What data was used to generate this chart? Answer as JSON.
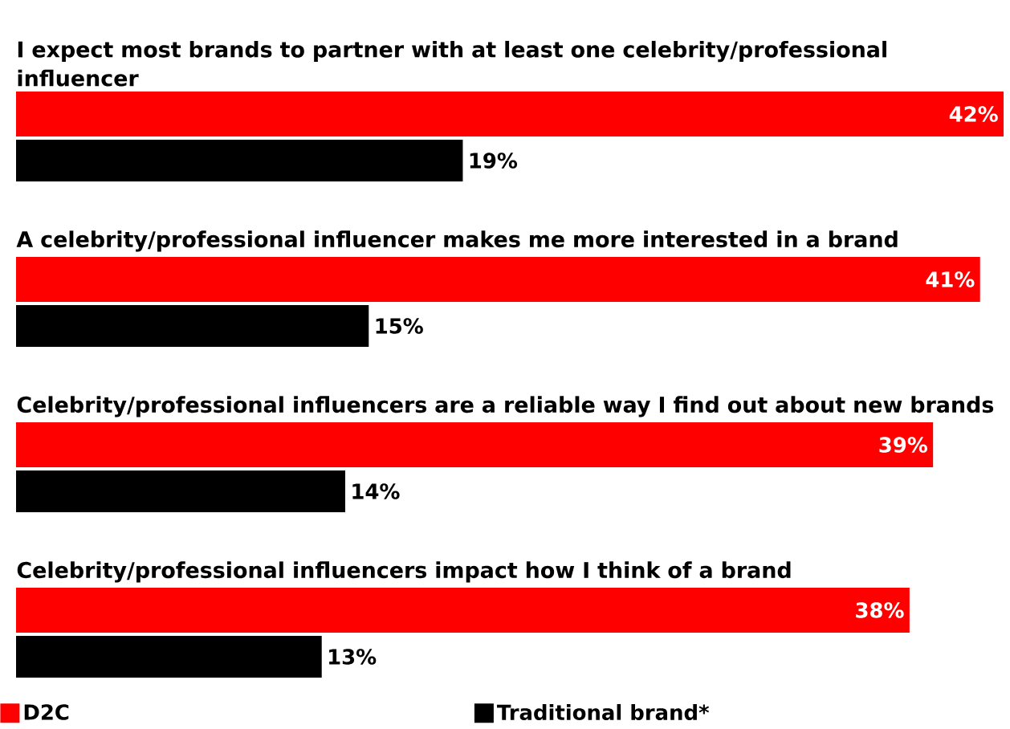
{
  "chart_data": {
    "type": "bar",
    "orientation": "horizontal",
    "categories": [
      "I expect most brands to partner with at least one celebrity/professional influencer",
      "A celebrity/professional influencer makes me more interested in a brand",
      "Celebrity/professional influencers are a reliable way I find out about new brands",
      "Celebrity/professional influencers impact how I think of a brand"
    ],
    "series": [
      {
        "name": "D2C",
        "color": "#ff0000",
        "values": [
          42,
          41,
          39,
          38
        ],
        "value_labels": [
          "42%",
          "41%",
          "39%",
          "38%"
        ]
      },
      {
        "name": "Traditional brand*",
        "color": "#000000",
        "values": [
          19,
          15,
          14,
          13
        ],
        "value_labels": [
          "19%",
          "15%",
          "14%",
          "13%"
        ]
      }
    ],
    "legend": "bottom"
  }
}
